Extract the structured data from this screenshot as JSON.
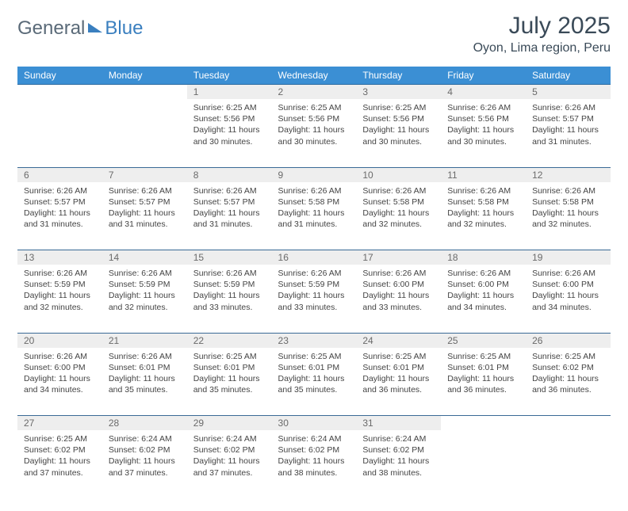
{
  "brand": {
    "part1": "General",
    "part2": "Blue"
  },
  "title": "July 2025",
  "location": "Oyon, Lima region, Peru",
  "colors": {
    "header_bg": "#3b8fd4",
    "header_text": "#ffffff",
    "daynum_bg": "#eeeeee",
    "row_divider": "#3a6a96",
    "brand_gray": "#5a6a78",
    "brand_blue": "#3a7fbf"
  },
  "weekdays": [
    "Sunday",
    "Monday",
    "Tuesday",
    "Wednesday",
    "Thursday",
    "Friday",
    "Saturday"
  ],
  "labels": {
    "sunrise": "Sunrise",
    "sunset": "Sunset",
    "daylight": "Daylight"
  },
  "first_weekday_index": 2,
  "days": [
    {
      "n": 1,
      "sunrise": "6:25 AM",
      "sunset": "5:56 PM",
      "daylight": "11 hours and 30 minutes."
    },
    {
      "n": 2,
      "sunrise": "6:25 AM",
      "sunset": "5:56 PM",
      "daylight": "11 hours and 30 minutes."
    },
    {
      "n": 3,
      "sunrise": "6:25 AM",
      "sunset": "5:56 PM",
      "daylight": "11 hours and 30 minutes."
    },
    {
      "n": 4,
      "sunrise": "6:26 AM",
      "sunset": "5:56 PM",
      "daylight": "11 hours and 30 minutes."
    },
    {
      "n": 5,
      "sunrise": "6:26 AM",
      "sunset": "5:57 PM",
      "daylight": "11 hours and 31 minutes."
    },
    {
      "n": 6,
      "sunrise": "6:26 AM",
      "sunset": "5:57 PM",
      "daylight": "11 hours and 31 minutes."
    },
    {
      "n": 7,
      "sunrise": "6:26 AM",
      "sunset": "5:57 PM",
      "daylight": "11 hours and 31 minutes."
    },
    {
      "n": 8,
      "sunrise": "6:26 AM",
      "sunset": "5:57 PM",
      "daylight": "11 hours and 31 minutes."
    },
    {
      "n": 9,
      "sunrise": "6:26 AM",
      "sunset": "5:58 PM",
      "daylight": "11 hours and 31 minutes."
    },
    {
      "n": 10,
      "sunrise": "6:26 AM",
      "sunset": "5:58 PM",
      "daylight": "11 hours and 32 minutes."
    },
    {
      "n": 11,
      "sunrise": "6:26 AM",
      "sunset": "5:58 PM",
      "daylight": "11 hours and 32 minutes."
    },
    {
      "n": 12,
      "sunrise": "6:26 AM",
      "sunset": "5:58 PM",
      "daylight": "11 hours and 32 minutes."
    },
    {
      "n": 13,
      "sunrise": "6:26 AM",
      "sunset": "5:59 PM",
      "daylight": "11 hours and 32 minutes."
    },
    {
      "n": 14,
      "sunrise": "6:26 AM",
      "sunset": "5:59 PM",
      "daylight": "11 hours and 32 minutes."
    },
    {
      "n": 15,
      "sunrise": "6:26 AM",
      "sunset": "5:59 PM",
      "daylight": "11 hours and 33 minutes."
    },
    {
      "n": 16,
      "sunrise": "6:26 AM",
      "sunset": "5:59 PM",
      "daylight": "11 hours and 33 minutes."
    },
    {
      "n": 17,
      "sunrise": "6:26 AM",
      "sunset": "6:00 PM",
      "daylight": "11 hours and 33 minutes."
    },
    {
      "n": 18,
      "sunrise": "6:26 AM",
      "sunset": "6:00 PM",
      "daylight": "11 hours and 34 minutes."
    },
    {
      "n": 19,
      "sunrise": "6:26 AM",
      "sunset": "6:00 PM",
      "daylight": "11 hours and 34 minutes."
    },
    {
      "n": 20,
      "sunrise": "6:26 AM",
      "sunset": "6:00 PM",
      "daylight": "11 hours and 34 minutes."
    },
    {
      "n": 21,
      "sunrise": "6:26 AM",
      "sunset": "6:01 PM",
      "daylight": "11 hours and 35 minutes."
    },
    {
      "n": 22,
      "sunrise": "6:25 AM",
      "sunset": "6:01 PM",
      "daylight": "11 hours and 35 minutes."
    },
    {
      "n": 23,
      "sunrise": "6:25 AM",
      "sunset": "6:01 PM",
      "daylight": "11 hours and 35 minutes."
    },
    {
      "n": 24,
      "sunrise": "6:25 AM",
      "sunset": "6:01 PM",
      "daylight": "11 hours and 36 minutes."
    },
    {
      "n": 25,
      "sunrise": "6:25 AM",
      "sunset": "6:01 PM",
      "daylight": "11 hours and 36 minutes."
    },
    {
      "n": 26,
      "sunrise": "6:25 AM",
      "sunset": "6:02 PM",
      "daylight": "11 hours and 36 minutes."
    },
    {
      "n": 27,
      "sunrise": "6:25 AM",
      "sunset": "6:02 PM",
      "daylight": "11 hours and 37 minutes."
    },
    {
      "n": 28,
      "sunrise": "6:24 AM",
      "sunset": "6:02 PM",
      "daylight": "11 hours and 37 minutes."
    },
    {
      "n": 29,
      "sunrise": "6:24 AM",
      "sunset": "6:02 PM",
      "daylight": "11 hours and 37 minutes."
    },
    {
      "n": 30,
      "sunrise": "6:24 AM",
      "sunset": "6:02 PM",
      "daylight": "11 hours and 38 minutes."
    },
    {
      "n": 31,
      "sunrise": "6:24 AM",
      "sunset": "6:02 PM",
      "daylight": "11 hours and 38 minutes."
    }
  ]
}
